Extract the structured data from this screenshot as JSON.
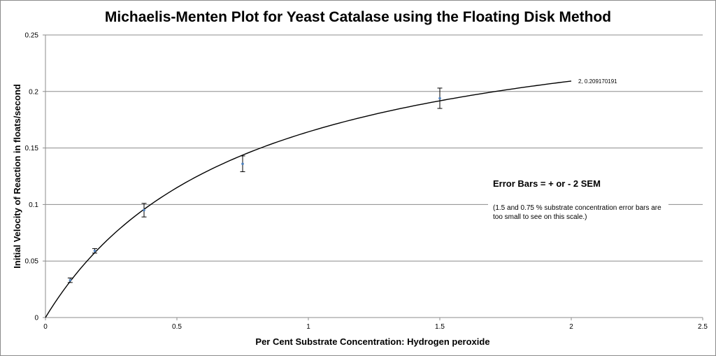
{
  "chart_data": {
    "type": "scatter",
    "title": "Michaelis-Menten Plot for Yeast Catalase using the Floating Disk Method",
    "xlabel": "Per Cent Substrate Concentration:  Hydrogen peroxide",
    "ylabel": "Initial Velocity of Reaction in floats/second",
    "xlim": [
      0,
      2.5
    ],
    "ylim": [
      0,
      0.25
    ],
    "x_ticks": [
      "0",
      "0.5",
      "1",
      "1.5",
      "2",
      "2.5"
    ],
    "y_ticks": [
      "0",
      "0.05",
      "0.1",
      "0.15",
      "0.2",
      "0.25"
    ],
    "grid": "horizontal",
    "points": [
      {
        "x": 0.094,
        "y": 0.033,
        "err": 0.002
      },
      {
        "x": 0.1875,
        "y": 0.059,
        "err": 0.002
      },
      {
        "x": 0.375,
        "y": 0.095,
        "err": 0.006
      },
      {
        "x": 0.75,
        "y": 0.136,
        "err": 0.007
      },
      {
        "x": 1.5,
        "y": 0.194,
        "err": 0.009
      }
    ],
    "fit_curve": {
      "vmax": 0.288,
      "km": 0.753,
      "x_range": [
        0,
        2
      ]
    },
    "point_label": "2, 0.209170191",
    "point_label_at": {
      "x": 2,
      "y": 0.209170191
    },
    "annotation": {
      "heading": "Error Bars = + or - 2 SEM",
      "note_line1": "(1.5 and 0.75 % substrate concentration error bars are",
      "note_line2": "too small to see on this scale.)"
    },
    "colors": {
      "point": "#4f81bd",
      "curve": "#000000",
      "grid": "#8c8c8c",
      "errorbar": "#000000"
    }
  }
}
